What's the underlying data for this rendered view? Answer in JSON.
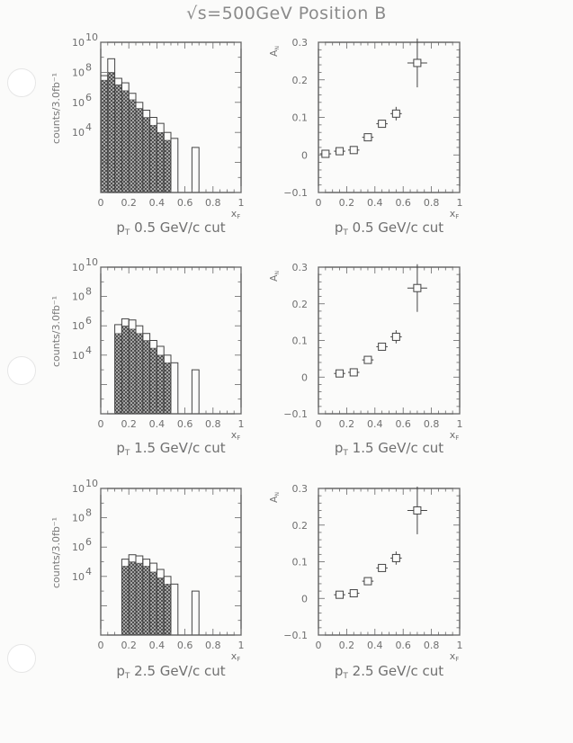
{
  "title": "√s=500GeV Position B",
  "left_axis": {
    "ylabel": "counts/3.0fb⁻¹",
    "ytick_labels": [
      "10",
      "10",
      "10",
      "10"
    ],
    "ytick_exponents": [
      "10",
      "8",
      "6",
      "4"
    ],
    "xtick_labels": [
      "0",
      "0.2",
      "0.4",
      "0.6",
      "0.8",
      "1"
    ],
    "xlabel": "x_F"
  },
  "right_axis": {
    "ylabel": "A_N",
    "ytick_labels": [
      "0.3",
      "0.2",
      "0.1",
      "0",
      "−0.1"
    ],
    "xtick_labels": [
      "0",
      "0.2",
      "0.4",
      "0.6",
      "0.8",
      "1"
    ],
    "xlabel": "x_F"
  },
  "captions": [
    {
      "pre": "p",
      "sub": "T",
      "post": " 0.5 GeV/c cut"
    },
    {
      "pre": "p",
      "sub": "T",
      "post": " 1.5 GeV/c cut"
    },
    {
      "pre": "p",
      "sub": "T",
      "post": " 2.5 GeV/c cut"
    }
  ],
  "chart_data": [
    {
      "type": "bar",
      "subtype": "stepped-histogram",
      "xlabel": "x_F",
      "ylabel": "counts/3.0fb⁻¹",
      "xlim": [
        0,
        1
      ],
      "ylim": [
        1,
        10000000000
      ],
      "yscale": "log",
      "bin_edges": [
        0,
        0.05,
        0.1,
        0.15,
        0.2,
        0.25,
        0.3,
        0.35,
        0.4,
        0.45,
        0.5,
        0.55,
        0.6,
        0.65,
        0.7
      ],
      "series": [
        {
          "style": "outline",
          "values": [
            60000000,
            800000000,
            40000000,
            20000000,
            4000000,
            1000000,
            300000,
            100000,
            40000,
            10000,
            4000,
            0,
            0,
            1000
          ]
        },
        {
          "style": "hatched",
          "values": [
            30000000,
            100000000,
            15000000,
            6000000,
            1500000,
            400000,
            100000,
            30000,
            10000,
            3000,
            0,
            0,
            0,
            0
          ]
        }
      ]
    },
    {
      "type": "scatter",
      "xlabel": "x_F",
      "ylabel": "A_N",
      "xlim": [
        0,
        1
      ],
      "ylim": [
        -0.1,
        0.3
      ],
      "points": [
        {
          "x": 0.05,
          "y": 0.003,
          "xerr": 0.04,
          "yerr": 0.003
        },
        {
          "x": 0.15,
          "y": 0.01,
          "xerr": 0.04,
          "yerr": 0.003
        },
        {
          "x": 0.25,
          "y": 0.013,
          "xerr": 0.04,
          "yerr": 0.005
        },
        {
          "x": 0.35,
          "y": 0.047,
          "xerr": 0.04,
          "yerr": 0.007
        },
        {
          "x": 0.45,
          "y": 0.083,
          "xerr": 0.04,
          "yerr": 0.01
        },
        {
          "x": 0.55,
          "y": 0.11,
          "xerr": 0.04,
          "yerr": 0.018
        },
        {
          "x": 0.7,
          "y": 0.245,
          "xerr": 0.07,
          "yerr": 0.065
        }
      ]
    },
    {
      "type": "bar",
      "subtype": "stepped-histogram",
      "xlabel": "x_F",
      "ylabel": "counts/3.0fb⁻¹",
      "xlim": [
        0,
        1
      ],
      "ylim": [
        1,
        10000000000
      ],
      "yscale": "log",
      "bin_edges": [
        0.1,
        0.15,
        0.2,
        0.25,
        0.3,
        0.35,
        0.4,
        0.45,
        0.5,
        0.55,
        0.6,
        0.65,
        0.7
      ],
      "series": [
        {
          "style": "outline",
          "values": [
            1200000,
            3000000,
            2500000,
            1000000,
            300000,
            100000,
            40000,
            10000,
            3000,
            0,
            0,
            1000
          ]
        },
        {
          "style": "hatched",
          "values": [
            300000,
            1000000,
            600000,
            300000,
            100000,
            30000,
            10000,
            3000,
            0,
            0,
            0,
            0
          ]
        }
      ]
    },
    {
      "type": "scatter",
      "xlabel": "x_F",
      "ylabel": "A_N",
      "xlim": [
        0,
        1
      ],
      "ylim": [
        -0.1,
        0.3
      ],
      "points": [
        {
          "x": 0.15,
          "y": 0.01,
          "xerr": 0.04,
          "yerr": 0.003
        },
        {
          "x": 0.25,
          "y": 0.013,
          "xerr": 0.04,
          "yerr": 0.005
        },
        {
          "x": 0.35,
          "y": 0.047,
          "xerr": 0.04,
          "yerr": 0.007
        },
        {
          "x": 0.45,
          "y": 0.083,
          "xerr": 0.04,
          "yerr": 0.01
        },
        {
          "x": 0.55,
          "y": 0.11,
          "xerr": 0.04,
          "yerr": 0.018
        },
        {
          "x": 0.7,
          "y": 0.243,
          "xerr": 0.07,
          "yerr": 0.065
        }
      ]
    },
    {
      "type": "bar",
      "subtype": "stepped-histogram",
      "xlabel": "x_F",
      "ylabel": "counts/3.0fb⁻¹",
      "xlim": [
        0,
        1
      ],
      "ylim": [
        1,
        10000000000
      ],
      "yscale": "log",
      "bin_edges": [
        0.15,
        0.2,
        0.25,
        0.3,
        0.35,
        0.4,
        0.45,
        0.5,
        0.55,
        0.6,
        0.65,
        0.7
      ],
      "series": [
        {
          "style": "outline",
          "values": [
            150000,
            300000,
            250000,
            150000,
            80000,
            30000,
            10000,
            3000,
            0,
            0,
            1000
          ]
        },
        {
          "style": "hatched",
          "values": [
            50000,
            100000,
            80000,
            50000,
            20000,
            8000,
            3000,
            0,
            0,
            0,
            0
          ]
        }
      ]
    },
    {
      "type": "scatter",
      "xlabel": "x_F",
      "ylabel": "A_N",
      "xlim": [
        0,
        1
      ],
      "ylim": [
        -0.1,
        0.3
      ],
      "points": [
        {
          "x": 0.15,
          "y": 0.01,
          "xerr": 0.04,
          "yerr": 0.003
        },
        {
          "x": 0.25,
          "y": 0.014,
          "xerr": 0.04,
          "yerr": 0.005
        },
        {
          "x": 0.35,
          "y": 0.047,
          "xerr": 0.04,
          "yerr": 0.007
        },
        {
          "x": 0.45,
          "y": 0.083,
          "xerr": 0.04,
          "yerr": 0.01
        },
        {
          "x": 0.55,
          "y": 0.11,
          "xerr": 0.04,
          "yerr": 0.018
        },
        {
          "x": 0.7,
          "y": 0.24,
          "xerr": 0.07,
          "yerr": 0.065
        }
      ]
    }
  ]
}
